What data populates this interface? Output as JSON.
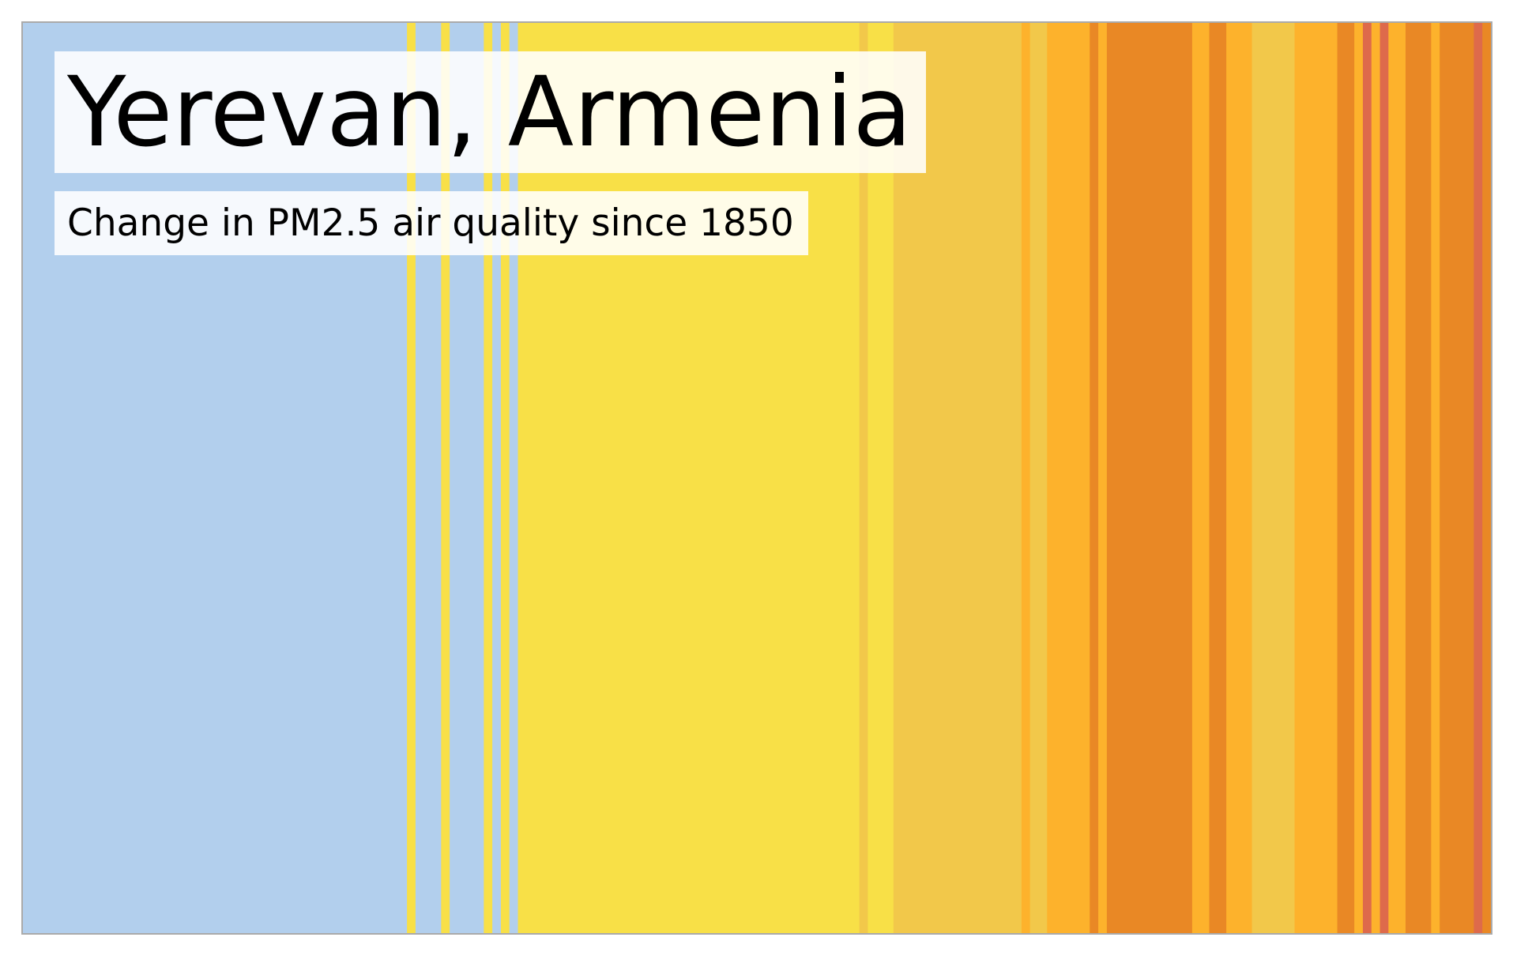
{
  "chart_data": {
    "type": "heatmap",
    "title": "Yerevan, Armenia",
    "subtitle": "Change in PM2.5 air quality since 1850",
    "grid": false,
    "legend": "none",
    "x_start_year": 1850,
    "x_end_year": 2021,
    "level_colors": {
      "blue": "#b2cfed",
      "yellow": "#f8e047",
      "gold": "#f2c84a",
      "light_orange": "#fdb22c",
      "orange": "#e98825",
      "red": "#de6a4b"
    },
    "stripes": [
      {
        "years": "1850–1894",
        "level": "blue"
      },
      {
        "years": "1895",
        "level": "yellow"
      },
      {
        "years": "1896–1898",
        "level": "blue"
      },
      {
        "years": "1899",
        "level": "yellow"
      },
      {
        "years": "1900–1903",
        "level": "blue"
      },
      {
        "years": "1904",
        "level": "yellow"
      },
      {
        "years": "1905",
        "level": "blue"
      },
      {
        "years": "1906",
        "level": "yellow"
      },
      {
        "years": "1907",
        "level": "blue"
      },
      {
        "years": "1908–1947",
        "level": "yellow"
      },
      {
        "years": "1948",
        "level": "gold"
      },
      {
        "years": "1949–1951",
        "level": "yellow"
      },
      {
        "years": "1952–1966",
        "level": "gold"
      },
      {
        "years": "1967",
        "level": "light_orange"
      },
      {
        "years": "1968–1969",
        "level": "gold"
      },
      {
        "years": "1970–1974",
        "level": "light_orange"
      },
      {
        "years": "1975",
        "level": "orange"
      },
      {
        "years": "1976",
        "level": "light_orange"
      },
      {
        "years": "1977–1986",
        "level": "orange"
      },
      {
        "years": "1987–1988",
        "level": "light_orange"
      },
      {
        "years": "1989–1990",
        "level": "orange"
      },
      {
        "years": "1991–1993",
        "level": "light_orange"
      },
      {
        "years": "1994–1998",
        "level": "gold"
      },
      {
        "years": "1999–2003",
        "level": "light_orange"
      },
      {
        "years": "2004–2005",
        "level": "orange"
      },
      {
        "years": "2006",
        "level": "light_orange"
      },
      {
        "years": "2007",
        "level": "red"
      },
      {
        "years": "2008",
        "level": "light_orange"
      },
      {
        "years": "2009",
        "level": "red"
      },
      {
        "years": "2010–2011",
        "level": "light_orange"
      },
      {
        "years": "2012–2014",
        "level": "orange"
      },
      {
        "years": "2015",
        "level": "light_orange"
      },
      {
        "years": "2016–2019",
        "level": "orange"
      },
      {
        "years": "2020",
        "level": "red"
      },
      {
        "years": "2021",
        "level": "orange"
      }
    ]
  }
}
